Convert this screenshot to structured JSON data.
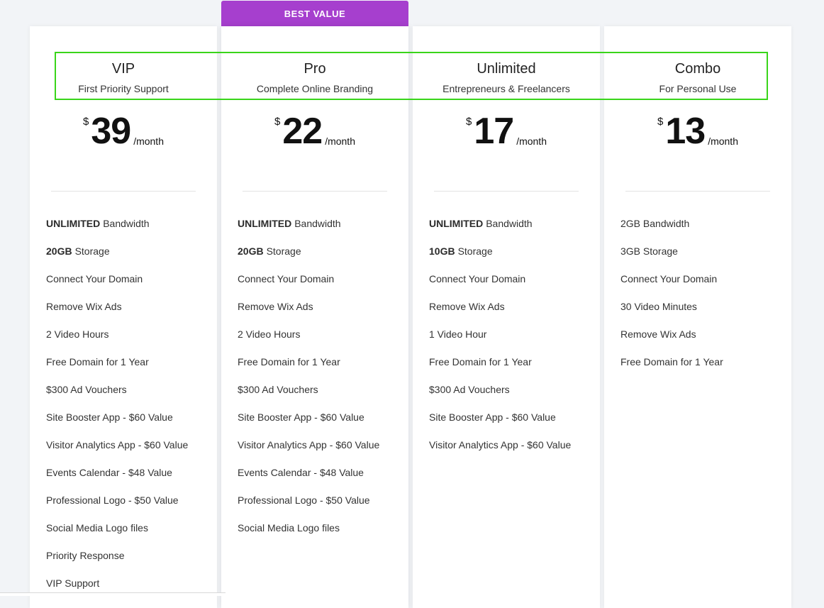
{
  "badge": "BEST VALUE",
  "currency_symbol": "$",
  "period": "/month",
  "plans": [
    {
      "name": "VIP",
      "tagline": "First Priority Support",
      "price": "39",
      "features": [
        {
          "bold": "UNLIMITED",
          "text": "Bandwidth"
        },
        {
          "bold": "20GB",
          "text": "Storage"
        },
        {
          "bold": "",
          "text": "Connect Your Domain"
        },
        {
          "bold": "",
          "text": "Remove Wix Ads"
        },
        {
          "bold": "",
          "text": "2 Video Hours"
        },
        {
          "bold": "",
          "text": "Free Domain for 1 Year"
        },
        {
          "bold": "",
          "text": "$300 Ad Vouchers"
        },
        {
          "bold": "",
          "text": "Site Booster App - $60 Value"
        },
        {
          "bold": "",
          "text": "Visitor Analytics App - $60 Value"
        },
        {
          "bold": "",
          "text": "Events Calendar - $48 Value"
        },
        {
          "bold": "",
          "text": "Professional Logo - $50 Value"
        },
        {
          "bold": "",
          "text": "Social Media Logo files"
        },
        {
          "bold": "",
          "text": "Priority Response"
        },
        {
          "bold": "",
          "text": "VIP Support"
        }
      ]
    },
    {
      "name": "Pro",
      "tagline": "Complete Online Branding",
      "price": "22",
      "features": [
        {
          "bold": "UNLIMITED",
          "text": "Bandwidth"
        },
        {
          "bold": "20GB",
          "text": "Storage"
        },
        {
          "bold": "",
          "text": "Connect Your Domain"
        },
        {
          "bold": "",
          "text": "Remove Wix Ads"
        },
        {
          "bold": "",
          "text": "2 Video Hours"
        },
        {
          "bold": "",
          "text": "Free Domain for 1 Year"
        },
        {
          "bold": "",
          "text": "$300 Ad Vouchers"
        },
        {
          "bold": "",
          "text": "Site Booster App - $60 Value"
        },
        {
          "bold": "",
          "text": "Visitor Analytics App - $60 Value"
        },
        {
          "bold": "",
          "text": "Events Calendar - $48 Value"
        },
        {
          "bold": "",
          "text": "Professional Logo - $50 Value"
        },
        {
          "bold": "",
          "text": "Social Media Logo files"
        }
      ]
    },
    {
      "name": "Unlimited",
      "tagline": "Entrepreneurs & Freelancers",
      "price": "17",
      "features": [
        {
          "bold": "UNLIMITED",
          "text": "Bandwidth"
        },
        {
          "bold": "10GB",
          "text": "Storage"
        },
        {
          "bold": "",
          "text": "Connect Your Domain"
        },
        {
          "bold": "",
          "text": "Remove Wix Ads"
        },
        {
          "bold": "",
          "text": "1 Video Hour"
        },
        {
          "bold": "",
          "text": "Free Domain for 1 Year"
        },
        {
          "bold": "",
          "text": "$300 Ad Vouchers"
        },
        {
          "bold": "",
          "text": "Site Booster App - $60 Value"
        },
        {
          "bold": "",
          "text": "Visitor Analytics App - $60 Value"
        }
      ]
    },
    {
      "name": "Combo",
      "tagline": "For Personal Use",
      "price": "13",
      "features": [
        {
          "bold": "",
          "text": "2GB Bandwidth"
        },
        {
          "bold": "",
          "text": "3GB Storage"
        },
        {
          "bold": "",
          "text": "Connect Your Domain"
        },
        {
          "bold": "",
          "text": "30 Video Minutes"
        },
        {
          "bold": "",
          "text": "Remove Wix Ads"
        },
        {
          "bold": "",
          "text": "Free Domain for 1 Year"
        }
      ]
    }
  ],
  "colors": {
    "badge": "#a63fce",
    "highlight_box": "#39d51a",
    "background": "#f2f4f7"
  }
}
